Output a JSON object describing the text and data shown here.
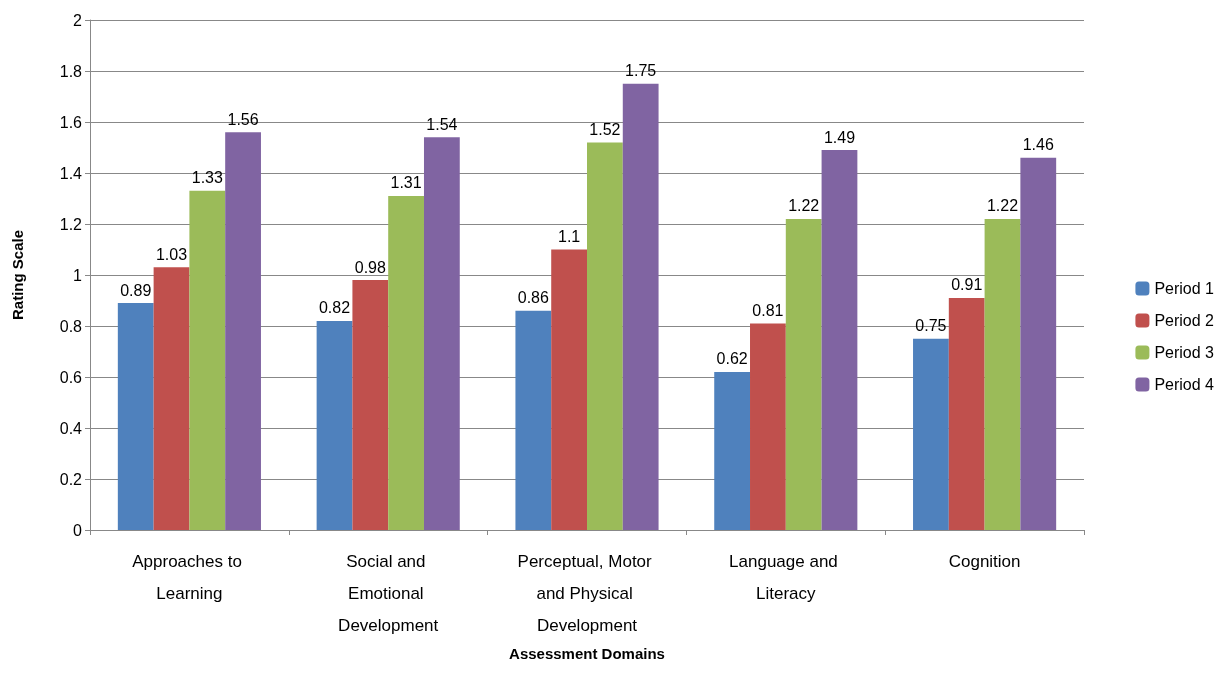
{
  "chart_data": {
    "type": "bar",
    "xlabel": "Assessment Domains",
    "ylabel": "Rating Scale",
    "categories": [
      "Approaches to Learning",
      "Social and Emotional Development",
      "Perceptual, Motor and Physical Development",
      "Language and Literacy",
      "Cognition"
    ],
    "series": [
      {
        "name": "Period 1",
        "color": "#4f81bd",
        "values": [
          0.89,
          0.82,
          0.86,
          0.62,
          0.75
        ]
      },
      {
        "name": "Period 2",
        "color": "#c0504d",
        "values": [
          1.03,
          0.98,
          1.1,
          0.81,
          0.91
        ]
      },
      {
        "name": "Period 3",
        "color": "#9bbb59",
        "values": [
          1.33,
          1.31,
          1.52,
          1.22,
          1.22
        ]
      },
      {
        "name": "Period 4",
        "color": "#8064a2",
        "values": [
          1.56,
          1.54,
          1.75,
          1.49,
          1.46
        ]
      }
    ],
    "ylim": [
      0,
      2
    ],
    "yticks": [
      0,
      0.2,
      0.4,
      0.6,
      0.8,
      1,
      1.2,
      1.4,
      1.6,
      1.8,
      2
    ],
    "grid": "y",
    "legend": "right",
    "data_labels": true
  }
}
